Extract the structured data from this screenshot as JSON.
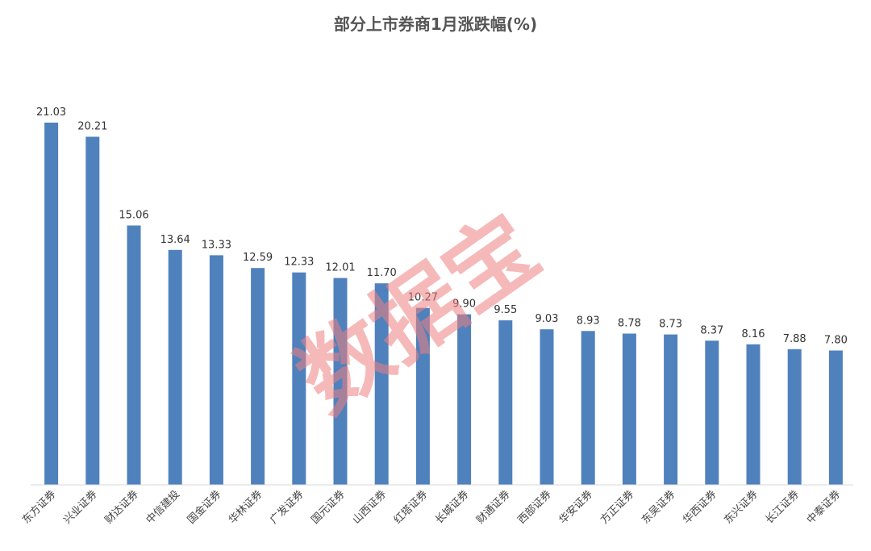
{
  "chart_data": {
    "type": "bar",
    "title": "部分上市券商1月涨跌幅(%)",
    "xlabel": "",
    "ylabel": "",
    "ylim": [
      0,
      22
    ],
    "grid": false,
    "legend": "none",
    "bar_color": "#4F81BD",
    "categories": [
      "东方证券",
      "兴业证券",
      "财达证券",
      "中信建投",
      "国金证券",
      "华林证券",
      "广发证券",
      "国元证券",
      "山西证券",
      "红塔证券",
      "长城证券",
      "财通证券",
      "西部证券",
      "华安证券",
      "方正证券",
      "东吴证券",
      "华西证券",
      "东兴证券",
      "长江证券",
      "中泰证券"
    ],
    "values": [
      21.03,
      20.21,
      15.06,
      13.64,
      13.33,
      12.59,
      12.33,
      12.01,
      11.7,
      10.27,
      9.9,
      9.55,
      9.03,
      8.93,
      8.78,
      8.73,
      8.37,
      8.16,
      7.88,
      7.8
    ],
    "value_labels": [
      "21.03",
      "20.21",
      "15.06",
      "13.64",
      "13.33",
      "12.59",
      "12.33",
      "12.01",
      "11.70",
      "10.27",
      "9.90",
      "9.55",
      "9.03",
      "8.93",
      "8.78",
      "8.73",
      "8.37",
      "8.16",
      "7.88",
      "7.80"
    ]
  },
  "watermark": {
    "text": "数据宝",
    "color": "#f08080"
  }
}
